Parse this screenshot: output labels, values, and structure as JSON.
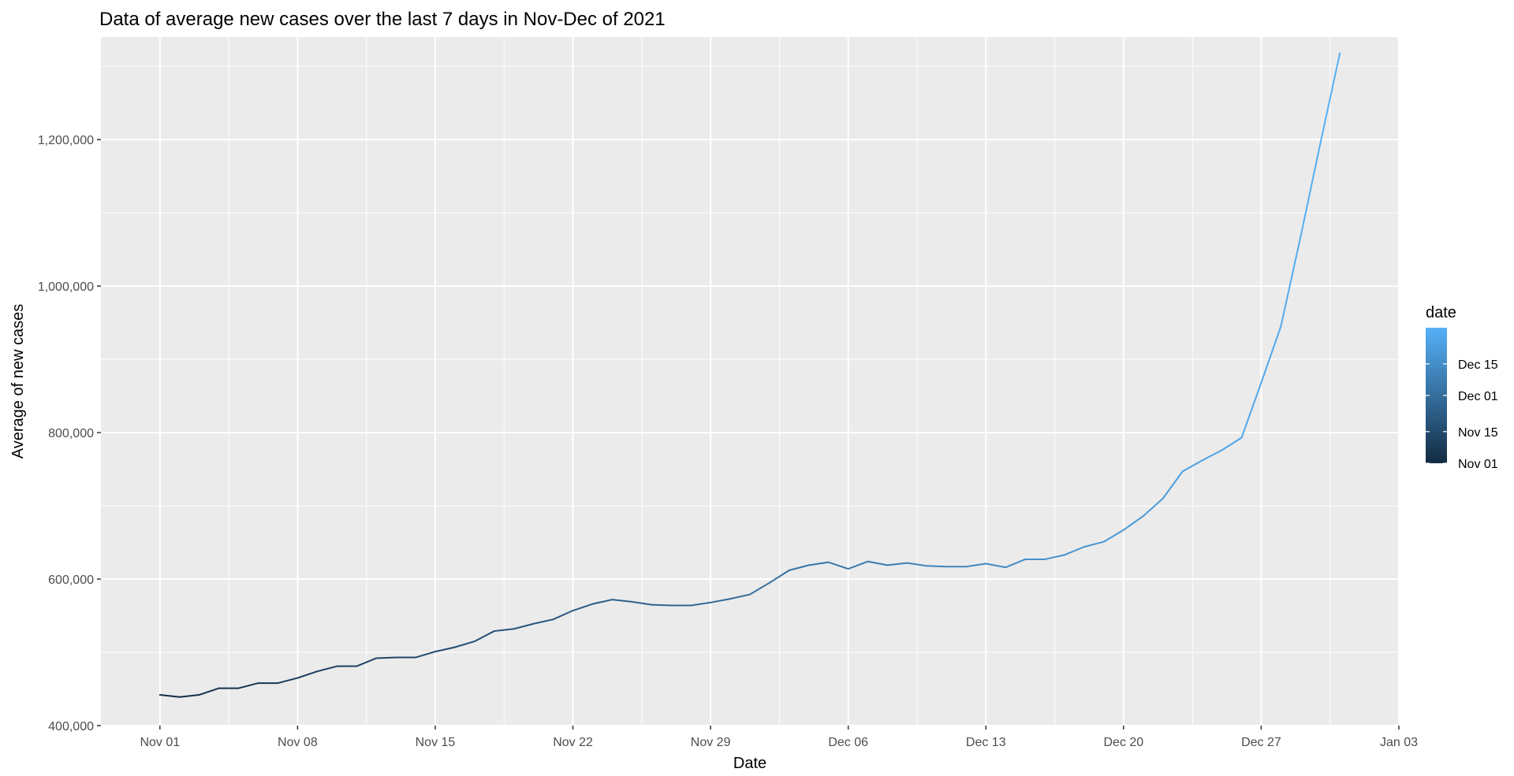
{
  "chart_data": {
    "type": "line",
    "title": "Data of average new cases over the last 7 days in Nov-Dec of 2021",
    "xlabel": "Date",
    "ylabel": "Average of new cases",
    "x_ticks": [
      "Nov 01",
      "Nov 08",
      "Nov 15",
      "Nov 22",
      "Nov 29",
      "Dec 06",
      "Dec 13",
      "Dec 20",
      "Dec 27",
      "Jan 03"
    ],
    "y_ticks": [
      "400,000",
      "600,000",
      "800,000",
      "1,000,000",
      "1,200,000"
    ],
    "xlim": [
      "2021-10-29",
      "2022-01-03"
    ],
    "ylim": [
      400000,
      1340000
    ],
    "grid": true,
    "colors": {
      "panel_background": "#ebebeb",
      "grid": "#ffffff",
      "line_start": "#132b43",
      "line_end": "#56b1f7"
    },
    "legend": {
      "title": "date",
      "position": "right",
      "labels": [
        "Dec 15",
        "Dec 01",
        "Nov 15",
        "Nov 01"
      ]
    },
    "series": [
      {
        "x": [
          "2021-11-01",
          "2021-11-02",
          "2021-11-03",
          "2021-11-04",
          "2021-11-05",
          "2021-11-06",
          "2021-11-07",
          "2021-11-08",
          "2021-11-09",
          "2021-11-10",
          "2021-11-11",
          "2021-11-12",
          "2021-11-13",
          "2021-11-14",
          "2021-11-15",
          "2021-11-16",
          "2021-11-17",
          "2021-11-18",
          "2021-11-19",
          "2021-11-20",
          "2021-11-21",
          "2021-11-22",
          "2021-11-23",
          "2021-11-24",
          "2021-11-25",
          "2021-11-26",
          "2021-11-27",
          "2021-11-28",
          "2021-11-29",
          "2021-11-30",
          "2021-12-01",
          "2021-12-02",
          "2021-12-03",
          "2021-12-04",
          "2021-12-05",
          "2021-12-06",
          "2021-12-07",
          "2021-12-08",
          "2021-12-09",
          "2021-12-10",
          "2021-12-11",
          "2021-12-12",
          "2021-12-13",
          "2021-12-14",
          "2021-12-15",
          "2021-12-16",
          "2021-12-17",
          "2021-12-18",
          "2021-12-19",
          "2021-12-20",
          "2021-12-21",
          "2021-12-22",
          "2021-12-23",
          "2021-12-24",
          "2021-12-25",
          "2021-12-26",
          "2021-12-27",
          "2021-12-28",
          "2021-12-29",
          "2021-12-30",
          "2021-12-31"
        ],
        "values": [
          442000,
          439000,
          442000,
          451000,
          451000,
          458000,
          458000,
          465000,
          474000,
          481000,
          481000,
          492000,
          493000,
          493000,
          501000,
          507000,
          515000,
          529000,
          532000,
          539000,
          545000,
          557000,
          566000,
          572000,
          569000,
          565000,
          564000,
          564000,
          568000,
          573000,
          579000,
          595000,
          612000,
          619000,
          623000,
          614000,
          624000,
          619000,
          622000,
          618000,
          617000,
          617000,
          621000,
          616000,
          627000,
          627000,
          633000,
          644000,
          651000,
          667000,
          686000,
          710000,
          747000,
          762000,
          776000,
          793000,
          868000,
          945000,
          1067000,
          1194000,
          1318000
        ]
      }
    ]
  }
}
